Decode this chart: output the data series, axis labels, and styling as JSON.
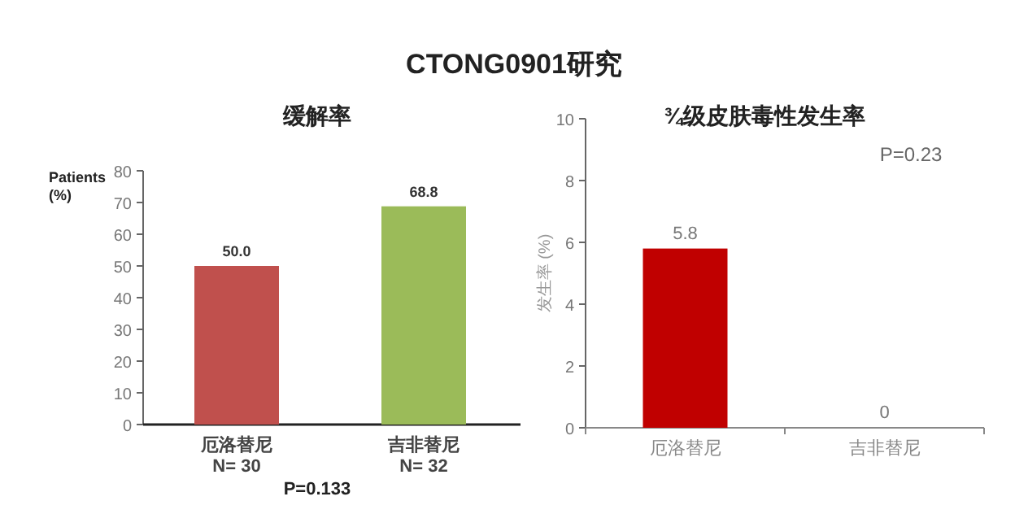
{
  "chart_data": [
    {
      "type": "bar",
      "title": "缓解率",
      "annotations": [
        "CTONG0901研究",
        "P=0.133"
      ],
      "ylabel": "Patients (%)",
      "categories": [
        "厄洛替尼\nN= 30",
        "吉非替尼\nN= 32"
      ],
      "values": [
        50.0,
        68.8
      ],
      "colors": [
        "#c0504d",
        "#9bbb59"
      ],
      "value_labels": [
        "50.0",
        "68.8"
      ],
      "ylim": [
        0,
        80
      ],
      "yticks": [
        0,
        10,
        20,
        30,
        40,
        50,
        60,
        70,
        80
      ],
      "grid": false
    },
    {
      "type": "bar",
      "title": "¾级皮肤毒性发生率",
      "annotations": [
        "P=0.23"
      ],
      "ylabel": "发生率 (%)",
      "categories": [
        "厄洛替尼",
        "吉非替尼"
      ],
      "values": [
        5.8,
        0
      ],
      "colors": [
        "#c00000",
        "#c00000"
      ],
      "data_labels": true,
      "ylim": [
        0,
        10
      ],
      "yticks": [
        0,
        2,
        4,
        6,
        8,
        10
      ],
      "grid": false
    }
  ]
}
